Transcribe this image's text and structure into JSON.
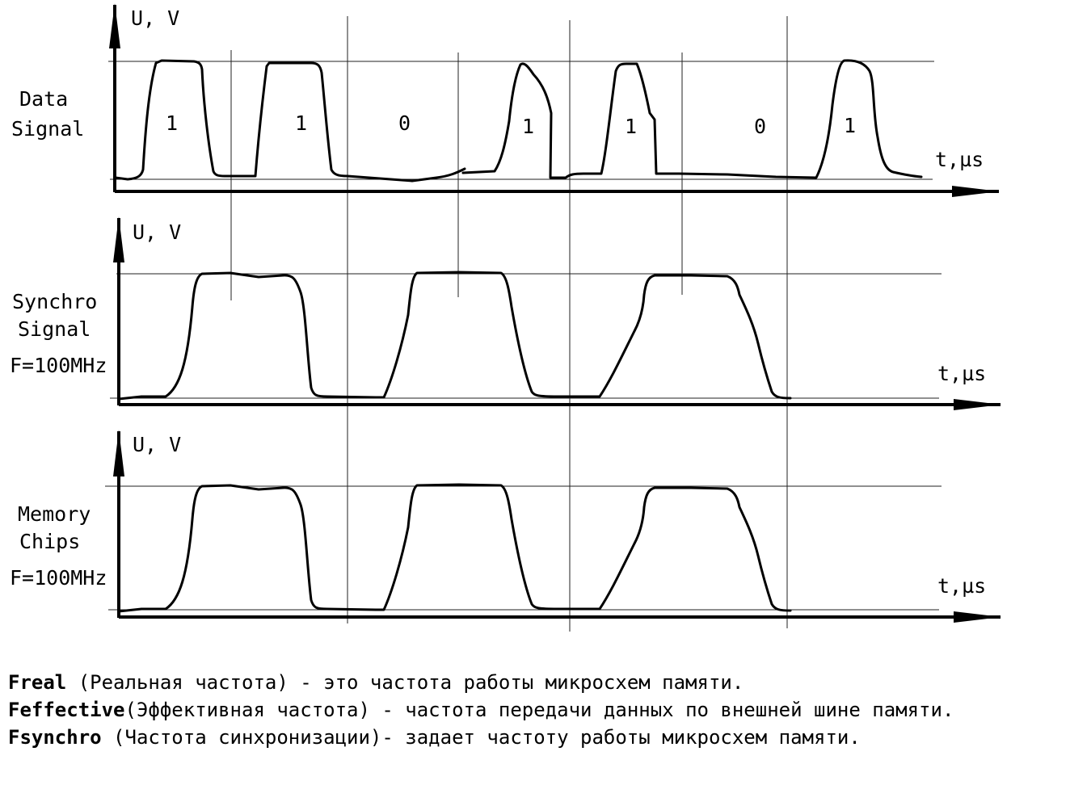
{
  "axis_labels": {
    "y": "U, V",
    "x": "t,µs"
  },
  "panels": [
    {
      "name_lines": [
        "Data",
        "Signal"
      ],
      "freq": ""
    },
    {
      "name_lines": [
        "Synchro",
        "Signal"
      ],
      "freq": "F=100MHz"
    },
    {
      "name_lines": [
        "Memory",
        "Chips"
      ],
      "freq": "F=100MHz"
    }
  ],
  "bits": [
    "1",
    "1",
    "0",
    "1",
    "1",
    "0",
    "1"
  ],
  "notes": [
    {
      "term": "Freal",
      "text": " (Реальная частота) - это частота работы микросхем памяти."
    },
    {
      "term": "Feffective",
      "text": "(Эффективная частота) - частота передачи данных по внешней шине памяти."
    },
    {
      "term": "Fsynchro",
      "text": " (Частота синхронизации)- задает частоту работы микросхем памяти."
    }
  ],
  "colors": {
    "ink": "#000000",
    "grid": "#222222"
  }
}
